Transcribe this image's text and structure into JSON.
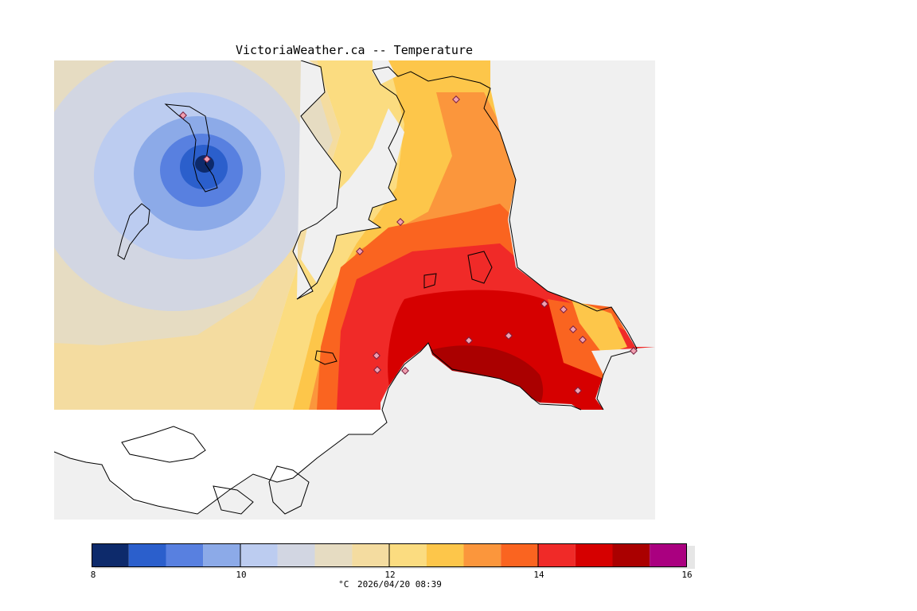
{
  "header": {
    "title": "VictoriaWeather.ca -- Temperature"
  },
  "legend": {
    "unit": "°C",
    "timestamp": "2026/04/20 08:39",
    "ticks": [
      "8",
      "10",
      "12",
      "14",
      "16"
    ],
    "range": [
      8,
      16
    ],
    "step": 0.5,
    "colors": [
      "#0d2a6b",
      "#2b5fcc",
      "#5880e0",
      "#8caae8",
      "#bcccf0",
      "#d2d6e2",
      "#e6dcc2",
      "#f4dca0",
      "#fbdc80",
      "#fdc64a",
      "#fb963c",
      "#fa6420",
      "#f02a28",
      "#d60000",
      "#aa0000",
      "#aa0080"
    ]
  },
  "map": {
    "background": "#f0f0f0",
    "coast_color": "#000000",
    "station_color": "#d04060"
  }
}
